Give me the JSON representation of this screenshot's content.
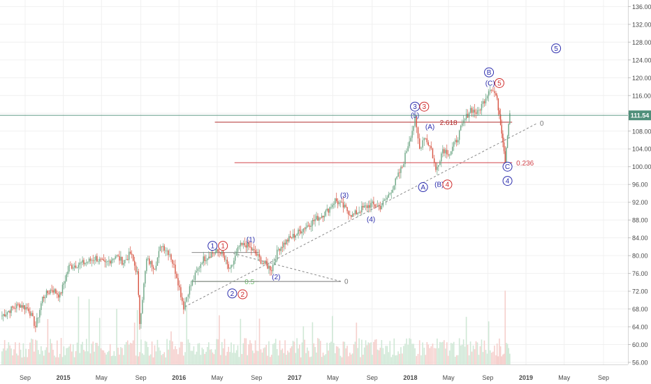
{
  "chart_data": {
    "type": "candlestick",
    "title": "",
    "xlabel": "",
    "ylabel": "",
    "ylim": [
      54,
      138
    ],
    "y_ticks": [
      "56.00",
      "60.00",
      "64.00",
      "68.00",
      "72.00",
      "76.00",
      "80.00",
      "84.00",
      "88.00",
      "92.00",
      "96.00",
      "100.00",
      "104.00",
      "108.00",
      "112.00",
      "116.00",
      "120.00",
      "124.00",
      "128.00",
      "132.00",
      "136.00"
    ],
    "x_ticks": [
      {
        "label": "Sep",
        "t": 2014.67
      },
      {
        "label": "2015",
        "t": 2015.0
      },
      {
        "label": "May",
        "t": 2015.33
      },
      {
        "label": "Sep",
        "t": 2015.67
      },
      {
        "label": "2016",
        "t": 2016.0
      },
      {
        "label": "May",
        "t": 2016.33
      },
      {
        "label": "Sep",
        "t": 2016.67
      },
      {
        "label": "2017",
        "t": 2017.0
      },
      {
        "label": "May",
        "t": 2017.33
      },
      {
        "label": "Sep",
        "t": 2017.67
      },
      {
        "label": "2018",
        "t": 2018.0
      },
      {
        "label": "May",
        "t": 2018.33
      },
      {
        "label": "Sep",
        "t": 2018.67
      },
      {
        "label": "2019",
        "t": 2019.0
      },
      {
        "label": "May",
        "t": 2019.33
      },
      {
        "label": "Sep",
        "t": 2019.67
      }
    ],
    "last_price": {
      "label": "111.54",
      "value": 111.54,
      "color": "#4f8f7a"
    },
    "price_path": [
      [
        2014.47,
        66.5
      ],
      [
        2014.55,
        68.0
      ],
      [
        2014.62,
        69.0
      ],
      [
        2014.7,
        68.0
      ],
      [
        2014.76,
        64.0
      ],
      [
        2014.82,
        70.5
      ],
      [
        2014.9,
        72.5
      ],
      [
        2014.97,
        71.0
      ],
      [
        2015.05,
        77.5
      ],
      [
        2015.12,
        78.0
      ],
      [
        2015.2,
        78.5
      ],
      [
        2015.28,
        79.5
      ],
      [
        2015.36,
        78.0
      ],
      [
        2015.45,
        80.0
      ],
      [
        2015.52,
        78.5
      ],
      [
        2015.58,
        80.5
      ],
      [
        2015.64,
        76.0
      ],
      [
        2015.66,
        65.0
      ],
      [
        2015.72,
        79.0
      ],
      [
        2015.79,
        77.5
      ],
      [
        2015.85,
        82.5
      ],
      [
        2015.92,
        80.5
      ],
      [
        2015.98,
        75.5
      ],
      [
        2016.04,
        68.5
      ],
      [
        2016.08,
        72.0
      ],
      [
        2016.14,
        75.5
      ],
      [
        2016.2,
        79.0
      ],
      [
        2016.28,
        80.5
      ],
      [
        2016.36,
        81.0
      ],
      [
        2016.44,
        76.5
      ],
      [
        2016.52,
        82.0
      ],
      [
        2016.58,
        82.5
      ],
      [
        2016.66,
        80.5
      ],
      [
        2016.72,
        78.5
      ],
      [
        2016.8,
        77.0
      ],
      [
        2016.86,
        81.5
      ],
      [
        2016.94,
        83.5
      ],
      [
        2017.02,
        85.0
      ],
      [
        2017.12,
        87.0
      ],
      [
        2017.2,
        88.5
      ],
      [
        2017.28,
        90.0
      ],
      [
        2017.35,
        92.5
      ],
      [
        2017.42,
        91.0
      ],
      [
        2017.5,
        89.0
      ],
      [
        2017.58,
        90.5
      ],
      [
        2017.66,
        91.5
      ],
      [
        2017.74,
        91.0
      ],
      [
        2017.8,
        93.0
      ],
      [
        2017.86,
        96.0
      ],
      [
        2017.93,
        100.0
      ],
      [
        2017.98,
        105.0
      ],
      [
        2018.04,
        110.5
      ],
      [
        2018.08,
        104.0
      ],
      [
        2018.12,
        107.0
      ],
      [
        2018.18,
        104.0
      ],
      [
        2018.22,
        99.0
      ],
      [
        2018.28,
        104.0
      ],
      [
        2018.34,
        103.0
      ],
      [
        2018.4,
        106.0
      ],
      [
        2018.46,
        110.0
      ],
      [
        2018.52,
        113.0
      ],
      [
        2018.58,
        112.0
      ],
      [
        2018.64,
        115.0
      ],
      [
        2018.69,
        118.0
      ],
      [
        2018.74,
        116.0
      ],
      [
        2018.77,
        112.0
      ],
      [
        2018.8,
        106.0
      ],
      [
        2018.82,
        101.5
      ],
      [
        2018.84,
        107.5
      ],
      [
        2018.86,
        112.0
      ]
    ],
    "volume_seed": 7,
    "horizontal_levels": [
      {
        "name": "fib-2618-line",
        "y": 110.0,
        "x0": 2016.31,
        "x1": 2018.88,
        "color": "#b22d2d",
        "label": "2.618",
        "label_color": "#b22d2d"
      },
      {
        "name": "fib-0236-line",
        "y": 100.9,
        "x0": 2016.48,
        "x1": 2018.88,
        "color": "#d1434a",
        "label": "0.236",
        "label_color": "#d1434a"
      },
      {
        "name": "fib-05-line",
        "y": 74.2,
        "x0": 2016.11,
        "x1": 2016.69,
        "color": "#7ac47a",
        "label": "0.5",
        "label_color": "#6fbf6f"
      },
      {
        "name": "level-0-low-line",
        "y": 74.2,
        "x0": 2016.11,
        "x1": 2017.4,
        "color": "#777777",
        "label": "",
        "label_color": "#777777"
      },
      {
        "name": "level-top-left-line",
        "y": 80.7,
        "x0": 2016.11,
        "x1": 2016.69,
        "color": "#888888",
        "label": "",
        "label_color": "#777777"
      }
    ],
    "dashed_lines": [
      {
        "name": "trend-dashed-line",
        "x0": 2016.05,
        "y0": 68.5,
        "x1": 2019.1,
        "y1": 109.8,
        "color": "#888888"
      },
      {
        "name": "channel-dashed-line",
        "x0": 2016.47,
        "y0": 80.5,
        "x1": 2017.4,
        "y1": 74.2,
        "color": "#888888"
      }
    ],
    "zero_labels": [
      {
        "name": "zero-label-top",
        "t": 2019.12,
        "v": 109.8,
        "text": "0"
      },
      {
        "name": "zero-label-bottom",
        "t": 2017.43,
        "v": 74.2,
        "text": "0"
      }
    ],
    "wave_labels": [
      {
        "name": "wave-label-1-blue",
        "t": 2016.29,
        "v": 82.2,
        "text": "1",
        "circle": true,
        "color": "#2b2dad"
      },
      {
        "name": "wave-label-1-red",
        "t": 2016.38,
        "v": 82.2,
        "text": "1",
        "circle": true,
        "color": "#cf2b2b"
      },
      {
        "name": "wave-label-1-paren",
        "t": 2016.62,
        "v": 83.6,
        "text": "(1)",
        "circle": false,
        "color": "#2b2dad"
      },
      {
        "name": "wave-label-2-blue",
        "t": 2016.46,
        "v": 71.5,
        "text": "2",
        "circle": true,
        "color": "#2b2dad"
      },
      {
        "name": "wave-label-2-red",
        "t": 2016.55,
        "v": 71.3,
        "text": "2",
        "circle": true,
        "color": "#cf2b2b"
      },
      {
        "name": "wave-label-2-paren",
        "t": 2016.84,
        "v": 75.2,
        "text": "(2)",
        "circle": false,
        "color": "#2b2dad"
      },
      {
        "name": "wave-label-3-paren",
        "t": 2017.43,
        "v": 93.6,
        "text": "(3)",
        "circle": false,
        "color": "#2b2dad"
      },
      {
        "name": "wave-label-4-paren",
        "t": 2017.66,
        "v": 88.2,
        "text": "(4)",
        "circle": false,
        "color": "#2b2dad"
      },
      {
        "name": "wave-label-3-blue",
        "t": 2018.04,
        "v": 113.5,
        "text": "3",
        "circle": true,
        "color": "#2b2dad"
      },
      {
        "name": "wave-label-3-red",
        "t": 2018.12,
        "v": 113.5,
        "text": "3",
        "circle": true,
        "color": "#cf2b2b"
      },
      {
        "name": "wave-label-5-paren",
        "t": 2018.04,
        "v": 111.6,
        "text": "(5)",
        "circle": false,
        "color": "#2b2dad"
      },
      {
        "name": "wave-label-A-paren",
        "t": 2018.17,
        "v": 109.0,
        "text": "(A)",
        "circle": false,
        "color": "#2b2dad"
      },
      {
        "name": "wave-label-A-circle",
        "t": 2018.11,
        "v": 95.4,
        "text": "A",
        "circle": true,
        "color": "#2b2dad"
      },
      {
        "name": "wave-label-B-paren",
        "t": 2018.25,
        "v": 96.0,
        "text": "(B)",
        "circle": false,
        "color": "#2b2dad"
      },
      {
        "name": "wave-label-4-red",
        "t": 2018.32,
        "v": 96.0,
        "text": "4",
        "circle": true,
        "color": "#cf2b2b"
      },
      {
        "name": "wave-label-B-circle",
        "t": 2018.68,
        "v": 121.2,
        "text": "B",
        "circle": true,
        "color": "#2b2dad"
      },
      {
        "name": "wave-label-C-paren",
        "t": 2018.69,
        "v": 118.8,
        "text": "(C)",
        "circle": false,
        "color": "#2b2dad"
      },
      {
        "name": "wave-label-5-red",
        "t": 2018.77,
        "v": 118.8,
        "text": "5",
        "circle": true,
        "color": "#cf2b2b"
      },
      {
        "name": "wave-label-C-circle",
        "t": 2018.84,
        "v": 100.0,
        "text": "C",
        "circle": true,
        "color": "#2b2dad"
      },
      {
        "name": "wave-label-4-blue",
        "t": 2018.84,
        "v": 96.8,
        "text": "4",
        "circle": true,
        "color": "#2b2dad"
      },
      {
        "name": "wave-label-5-blue",
        "t": 2019.26,
        "v": 126.6,
        "text": "5",
        "circle": true,
        "color": "#2b2dad"
      }
    ],
    "colors": {
      "up": "#6ba583",
      "down": "#d75442",
      "volume_up": "#cfe8d6",
      "volume_down": "#f5cfcc",
      "axis_text": "#4a4a4a",
      "grid": "#f0f0f0"
    }
  }
}
